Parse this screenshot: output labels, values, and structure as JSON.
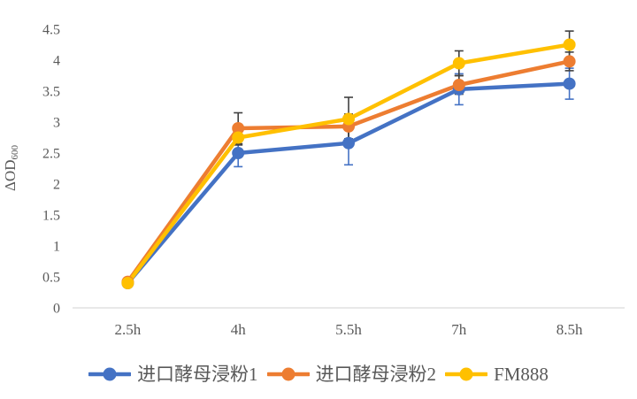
{
  "chart_data": {
    "type": "line",
    "categories": [
      "2.5h",
      "4h",
      "5.5h",
      "7h",
      "8.5h"
    ],
    "series": [
      {
        "name": "进口酵母浸粉1",
        "color": "#4472C4",
        "error_color": "#4472C4",
        "values": [
          0.4,
          2.5,
          2.66,
          3.53,
          3.62
        ],
        "errors": [
          0.04,
          0.22,
          0.35,
          0.25,
          0.25
        ]
      },
      {
        "name": "进口酵母浸粉2",
        "color": "#ED7D31",
        "error_color": "#404040",
        "values": [
          0.42,
          2.9,
          2.93,
          3.6,
          3.98
        ],
        "errors": [
          0.04,
          0.25,
          0.2,
          0.15,
          0.15
        ]
      },
      {
        "name": "FM888",
        "color": "#FFC000",
        "error_color": "#404040",
        "values": [
          0.4,
          2.75,
          3.05,
          3.95,
          4.25
        ],
        "errors": [
          0.04,
          0.12,
          0.35,
          0.2,
          0.22
        ]
      }
    ],
    "title": "",
    "xlabel": "",
    "ylabel": "ΔOD",
    "ylabel_subscript": "600",
    "ylim": [
      0,
      4.5
    ],
    "ytick_step": 0.5,
    "grid": false,
    "legend_position": "bottom",
    "axis_line_color": "#D9D9D9",
    "tick_label_color": "#595959",
    "marker_shape": "circle"
  }
}
